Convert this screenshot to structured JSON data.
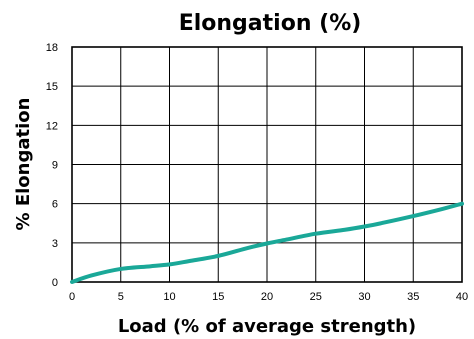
{
  "chart_data": {
    "type": "line",
    "title": "Elongation (%)",
    "xlabel": "Load (% of average strength)",
    "ylabel": "% Elongation",
    "xlim": [
      0,
      40
    ],
    "ylim": [
      0,
      18
    ],
    "x_ticks": [
      0,
      5,
      10,
      15,
      20,
      25,
      30,
      35,
      40
    ],
    "y_ticks": [
      0,
      3,
      6,
      9,
      12,
      15,
      18
    ],
    "grid": true,
    "line_color": "#1aa898",
    "series": [
      {
        "x": [
          0,
          2,
          5,
          8,
          10,
          12,
          15,
          18,
          20,
          22,
          25,
          28,
          30,
          32,
          35,
          38,
          40
        ],
        "y": [
          0,
          0.5,
          1.0,
          1.2,
          1.35,
          1.6,
          2.0,
          2.6,
          2.95,
          3.25,
          3.7,
          4.0,
          4.25,
          4.55,
          5.05,
          5.6,
          6.0
        ]
      }
    ]
  }
}
